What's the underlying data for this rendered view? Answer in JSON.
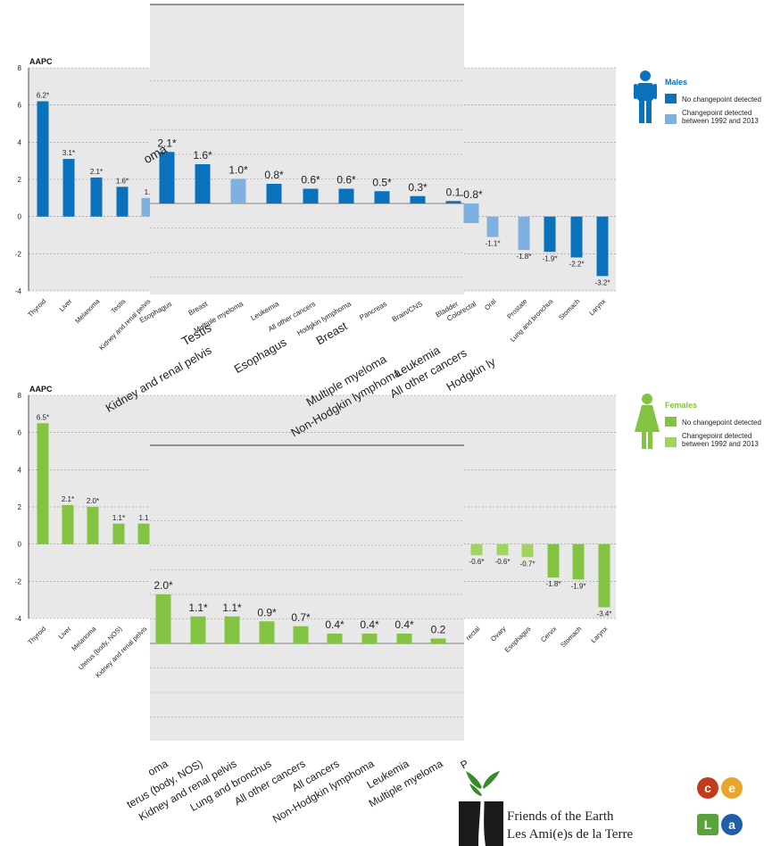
{
  "colors": {
    "males_dark": "#0a72bd",
    "males_light": "#7fb1e0",
    "females_dark": "#82c341",
    "females_light": "#9fd45f",
    "panel_bg": "#e8e8e8"
  },
  "chart_data": [
    {
      "id": "males-main",
      "type": "bar",
      "ylabel": "AAPC",
      "ylim": [
        -4,
        8
      ],
      "yticks": [
        8,
        6,
        4,
        2,
        0,
        -2,
        -4
      ],
      "categories": [
        "Thyroid",
        "Liver",
        "Melanoma",
        "Testis",
        "Kidney and renal pelvis",
        "Oral",
        "Prostate",
        "Lung and bronchus",
        "Stomach",
        "Larynx"
      ],
      "values": [
        6.2,
        3.1,
        2.1,
        1.6,
        1.0,
        -1.1,
        -1.8,
        -1.9,
        -2.2,
        -3.2
      ],
      "labels": [
        "6.2*",
        "3.1*",
        "2.1*",
        "1.6*",
        "1.",
        "-1.1*",
        "-1.8*",
        "-1.9*",
        "-2.2*",
        "-3.2*"
      ],
      "changepoint": [
        false,
        false,
        false,
        false,
        true,
        true,
        true,
        false,
        false,
        false
      ]
    },
    {
      "id": "males-overlay",
      "type": "bar",
      "categories": [
        "Esophagus",
        "Breast",
        "Multiple myeloma",
        "Leukemia",
        "All other cancers",
        "Hodgkin lymphoma",
        "Pancreas",
        "Brain/CNS",
        "Bladder",
        "Colorectal"
      ],
      "values": [
        2.1,
        1.6,
        1.0,
        0.8,
        0.6,
        0.6,
        0.5,
        0.3,
        0.1,
        -0.8
      ],
      "labels": [
        "2.1*",
        "1.6*",
        "1.0*",
        "0.8*",
        "0.6*",
        "0.6*",
        "0.5*",
        "0.3*",
        "0.1",
        "-0.8*"
      ],
      "changepoint": [
        false,
        false,
        true,
        false,
        false,
        false,
        false,
        false,
        false,
        true
      ],
      "extra_labels": [
        "Testis",
        "Kidney and renal pelvis",
        "Esophagus",
        "Breast",
        "Multiple myeloma",
        "Non-Hodgkin lymphoma",
        "Leukemia",
        "All other cancers",
        "Hodgkin ly"
      ],
      "left_fragment": "oma"
    },
    {
      "id": "females-main",
      "type": "bar",
      "ylabel": "AAPC",
      "ylim": [
        -4,
        8
      ],
      "yticks": [
        8,
        6,
        4,
        2,
        0,
        -2,
        -4
      ],
      "categories": [
        "Thyroid",
        "Liver",
        "Melanoma",
        "Uterus (body, NOS)",
        "Kidney and renal pelvis",
        "Lung a",
        "rectal",
        "Ovary",
        "Esophagus",
        "Cervix",
        "Stomach",
        "Larynx"
      ],
      "values": [
        6.5,
        2.1,
        2.0,
        1.1,
        1.1,
        null,
        -0.6,
        -0.6,
        -0.7,
        -1.8,
        -1.9,
        -3.4
      ],
      "labels": [
        "6.5*",
        "2.1*",
        "2.0*",
        "1.1*",
        "1.1",
        "",
        "-0.6*",
        "-0.6*",
        "-0.7*",
        "-1.8*",
        "-1.9*",
        "-3.4*"
      ],
      "changepoint": [
        false,
        false,
        false,
        false,
        false,
        false,
        true,
        true,
        true,
        false,
        false,
        false
      ]
    },
    {
      "id": "females-overlay",
      "type": "bar",
      "categories": [
        "oma",
        "terus (body, NOS)",
        "Kidney and renal pelvis",
        "Lung and bronchus",
        "All other cancers",
        "All cancers",
        "Non-Hodgkin lymphoma",
        "Leukemia",
        "Multiple myeloma",
        "P"
      ],
      "values": [
        2.0,
        1.1,
        1.1,
        0.9,
        0.7,
        0.4,
        0.4,
        0.4,
        0.2,
        null
      ],
      "labels": [
        "2.0*",
        "1.1*",
        "1.1*",
        "0.9*",
        "0.7*",
        "0.4*",
        "0.4*",
        "0.4*",
        "0.2",
        ""
      ]
    }
  ],
  "legend_males": {
    "title": "Males",
    "items": [
      "No changepoint detected",
      "Changepoint detected",
      "between 1992 and 2013"
    ]
  },
  "legend_females": {
    "title": "Females",
    "items": [
      "No changepoint detected",
      "Changepoint detected",
      "between 1992 and 2013"
    ]
  },
  "branding": {
    "line1": "Friends of the Earth",
    "line2": "Les Ami(e)s de la Terre",
    "badges": [
      "c",
      "e",
      "L",
      "a"
    ]
  }
}
